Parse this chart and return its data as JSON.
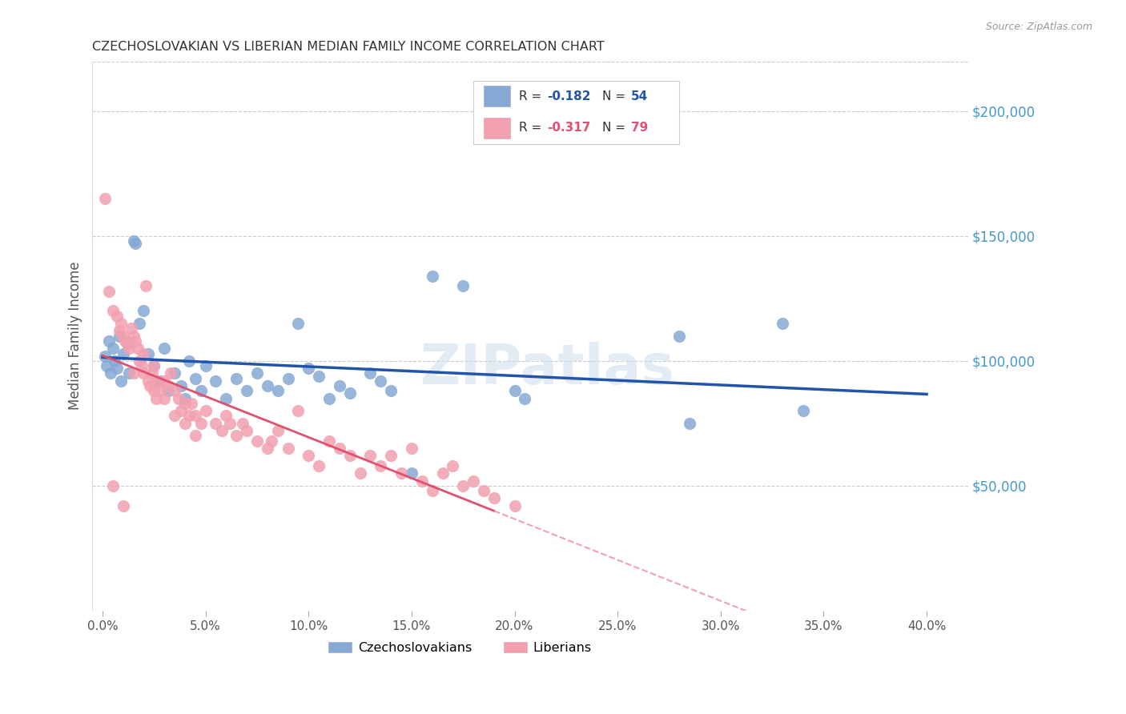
{
  "title": "CZECHOSLOVAKIAN VS LIBERIAN MEDIAN FAMILY INCOME CORRELATION CHART",
  "source": "Source: ZipAtlas.com",
  "ylabel": "Median Family Income",
  "xlabel_ticks": [
    "0.0%",
    "5.0%",
    "10.0%",
    "15.0%",
    "20.0%",
    "25.0%",
    "30.0%",
    "35.0%",
    "40.0%"
  ],
  "xlabel_vals": [
    0.0,
    0.05,
    0.1,
    0.15,
    0.2,
    0.25,
    0.3,
    0.35,
    0.4
  ],
  "ytick_labels": [
    "$50,000",
    "$100,000",
    "$150,000",
    "$200,000"
  ],
  "ytick_vals": [
    50000,
    100000,
    150000,
    200000
  ],
  "ylim": [
    0,
    220000
  ],
  "xlim": [
    -0.005,
    0.42
  ],
  "legend_blue_r": "-0.182",
  "legend_blue_n": "54",
  "legend_pink_r": "-0.317",
  "legend_pink_n": "79",
  "blue_color": "#85a9d4",
  "pink_color": "#f2a0b0",
  "trendline_blue": "#2255aa",
  "trendline_pink_solid": "#e05070",
  "trendline_pink_dashed": "#f0a0b8",
  "watermark": "ZIPatlas",
  "blue_scatter": [
    [
      0.001,
      102000
    ],
    [
      0.002,
      98000
    ],
    [
      0.003,
      108000
    ],
    [
      0.004,
      95000
    ],
    [
      0.005,
      105000
    ],
    [
      0.006,
      100000
    ],
    [
      0.007,
      97000
    ],
    [
      0.008,
      110000
    ],
    [
      0.009,
      92000
    ],
    [
      0.01,
      103000
    ],
    [
      0.012,
      107000
    ],
    [
      0.013,
      95000
    ],
    [
      0.015,
      148000
    ],
    [
      0.016,
      147000
    ],
    [
      0.018,
      115000
    ],
    [
      0.02,
      120000
    ],
    [
      0.022,
      103000
    ],
    [
      0.025,
      98000
    ],
    [
      0.028,
      92000
    ],
    [
      0.03,
      105000
    ],
    [
      0.032,
      88000
    ],
    [
      0.035,
      95000
    ],
    [
      0.038,
      90000
    ],
    [
      0.04,
      85000
    ],
    [
      0.042,
      100000
    ],
    [
      0.045,
      93000
    ],
    [
      0.048,
      88000
    ],
    [
      0.05,
      98000
    ],
    [
      0.055,
      92000
    ],
    [
      0.06,
      85000
    ],
    [
      0.065,
      93000
    ],
    [
      0.07,
      88000
    ],
    [
      0.075,
      95000
    ],
    [
      0.08,
      90000
    ],
    [
      0.085,
      88000
    ],
    [
      0.09,
      93000
    ],
    [
      0.095,
      115000
    ],
    [
      0.1,
      97000
    ],
    [
      0.105,
      94000
    ],
    [
      0.11,
      85000
    ],
    [
      0.115,
      90000
    ],
    [
      0.12,
      87000
    ],
    [
      0.13,
      95000
    ],
    [
      0.135,
      92000
    ],
    [
      0.14,
      88000
    ],
    [
      0.15,
      55000
    ],
    [
      0.16,
      134000
    ],
    [
      0.175,
      130000
    ],
    [
      0.2,
      88000
    ],
    [
      0.205,
      85000
    ],
    [
      0.28,
      110000
    ],
    [
      0.285,
      75000
    ],
    [
      0.33,
      115000
    ],
    [
      0.34,
      80000
    ]
  ],
  "pink_scatter": [
    [
      0.001,
      165000
    ],
    [
      0.003,
      128000
    ],
    [
      0.005,
      120000
    ],
    [
      0.007,
      118000
    ],
    [
      0.008,
      112000
    ],
    [
      0.009,
      115000
    ],
    [
      0.01,
      110000
    ],
    [
      0.011,
      108000
    ],
    [
      0.012,
      107000
    ],
    [
      0.013,
      105000
    ],
    [
      0.014,
      113000
    ],
    [
      0.015,
      110000
    ],
    [
      0.016,
      108000
    ],
    [
      0.017,
      105000
    ],
    [
      0.018,
      100000
    ],
    [
      0.019,
      98000
    ],
    [
      0.02,
      95000
    ],
    [
      0.021,
      130000
    ],
    [
      0.022,
      92000
    ],
    [
      0.023,
      90000
    ],
    [
      0.024,
      95000
    ],
    [
      0.025,
      88000
    ],
    [
      0.026,
      85000
    ],
    [
      0.027,
      92000
    ],
    [
      0.028,
      88000
    ],
    [
      0.03,
      85000
    ],
    [
      0.032,
      90000
    ],
    [
      0.033,
      95000
    ],
    [
      0.035,
      88000
    ],
    [
      0.037,
      85000
    ],
    [
      0.038,
      80000
    ],
    [
      0.04,
      83000
    ],
    [
      0.042,
      78000
    ],
    [
      0.043,
      83000
    ],
    [
      0.045,
      78000
    ],
    [
      0.048,
      75000
    ],
    [
      0.05,
      80000
    ],
    [
      0.055,
      75000
    ],
    [
      0.058,
      72000
    ],
    [
      0.06,
      78000
    ],
    [
      0.062,
      75000
    ],
    [
      0.065,
      70000
    ],
    [
      0.068,
      75000
    ],
    [
      0.07,
      72000
    ],
    [
      0.075,
      68000
    ],
    [
      0.08,
      65000
    ],
    [
      0.082,
      68000
    ],
    [
      0.085,
      72000
    ],
    [
      0.09,
      65000
    ],
    [
      0.095,
      80000
    ],
    [
      0.1,
      62000
    ],
    [
      0.105,
      58000
    ],
    [
      0.11,
      68000
    ],
    [
      0.115,
      65000
    ],
    [
      0.12,
      62000
    ],
    [
      0.125,
      55000
    ],
    [
      0.13,
      62000
    ],
    [
      0.135,
      58000
    ],
    [
      0.14,
      62000
    ],
    [
      0.145,
      55000
    ],
    [
      0.15,
      65000
    ],
    [
      0.155,
      52000
    ],
    [
      0.16,
      48000
    ],
    [
      0.165,
      55000
    ],
    [
      0.17,
      58000
    ],
    [
      0.175,
      50000
    ],
    [
      0.18,
      52000
    ],
    [
      0.185,
      48000
    ],
    [
      0.19,
      45000
    ],
    [
      0.2,
      42000
    ],
    [
      0.005,
      50000
    ],
    [
      0.01,
      42000
    ],
    [
      0.015,
      95000
    ],
    [
      0.02,
      103000
    ],
    [
      0.025,
      98000
    ],
    [
      0.03,
      92000
    ],
    [
      0.035,
      78000
    ],
    [
      0.04,
      75000
    ],
    [
      0.045,
      70000
    ]
  ],
  "background_color": "#ffffff",
  "grid_color": "#cccccc",
  "title_color": "#333333",
  "axis_label_color": "#555555",
  "ytick_color": "#4499cc",
  "xtick_color": "#555555"
}
